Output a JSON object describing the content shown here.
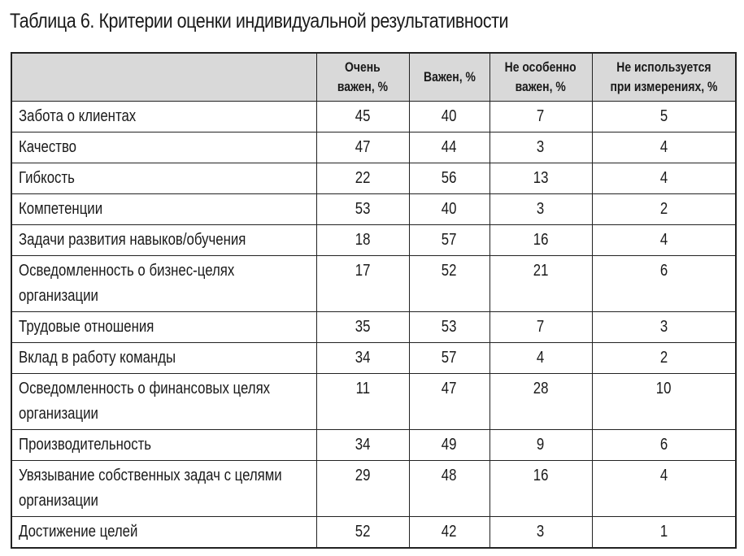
{
  "title": "Таблица 6.  Критерии оценки индивидуальной результативности",
  "table": {
    "headers": [
      "",
      "Очень\nважен, %",
      "Важен, %",
      "Не особенно\nважен, %",
      "Не используется\nпри измерениях, %"
    ],
    "rows": [
      {
        "name_line1": "Забота о клиентах",
        "name_line2": "",
        "values": [
          "45",
          "40",
          "7",
          "5"
        ]
      },
      {
        "name_line1": "Качество",
        "name_line2": "",
        "values": [
          "47",
          "44",
          "3",
          "4"
        ]
      },
      {
        "name_line1": "Гибкость",
        "name_line2": "",
        "values": [
          "22",
          "56",
          "13",
          "4"
        ]
      },
      {
        "name_line1": "Компетенции",
        "name_line2": "",
        "values": [
          "53",
          "40",
          "3",
          "2"
        ]
      },
      {
        "name_line1": "Задачи развития навыков/обучения",
        "name_line2": "",
        "values": [
          "18",
          "57",
          "16",
          "4"
        ]
      },
      {
        "name_line1": "Осведомленность о бизнес-целях",
        "name_line2": "организации",
        "values": [
          "17",
          "52",
          "21",
          "6"
        ]
      },
      {
        "name_line1": "Трудовые отношения",
        "name_line2": "",
        "values": [
          "35",
          "53",
          "7",
          "3"
        ]
      },
      {
        "name_line1": "Вклад в работу команды",
        "name_line2": "",
        "values": [
          "34",
          "57",
          "4",
          "2"
        ]
      },
      {
        "name_line1": "Осведомленность о финансовых целях",
        "name_line2": "организации",
        "values": [
          "11",
          "47",
          "28",
          "10"
        ]
      },
      {
        "name_line1": "Производительность",
        "name_line2": "",
        "values": [
          "34",
          "49",
          "9",
          "6"
        ]
      },
      {
        "name_line1": "Увязывание собственных задач с целями",
        "name_line2": "организации",
        "values": [
          "29",
          "48",
          "16",
          "4"
        ]
      },
      {
        "name_line1": "Достижение целей",
        "name_line2": "",
        "values": [
          "52",
          "42",
          "3",
          "1"
        ]
      }
    ]
  }
}
